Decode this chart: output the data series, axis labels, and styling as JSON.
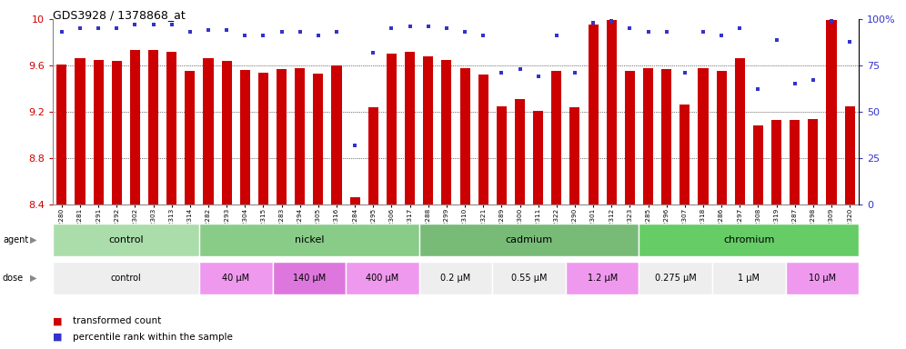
{
  "title": "GDS3928 / 1378868_at",
  "samples": [
    "GSM782280",
    "GSM782281",
    "GSM782291",
    "GSM782292",
    "GSM782302",
    "GSM782303",
    "GSM782313",
    "GSM782314",
    "GSM782282",
    "GSM782293",
    "GSM782304",
    "GSM782315",
    "GSM782283",
    "GSM782294",
    "GSM782305",
    "GSM782316",
    "GSM782284",
    "GSM782295",
    "GSM782306",
    "GSM782317",
    "GSM782288",
    "GSM782299",
    "GSM782310",
    "GSM782321",
    "GSM782289",
    "GSM782300",
    "GSM782311",
    "GSM782322",
    "GSM782290",
    "GSM782301",
    "GSM782312",
    "GSM782323",
    "GSM782285",
    "GSM782296",
    "GSM782307",
    "GSM782318",
    "GSM782286",
    "GSM782297",
    "GSM782308",
    "GSM782319",
    "GSM782287",
    "GSM782298",
    "GSM782309",
    "GSM782320"
  ],
  "bar_values": [
    9.61,
    9.66,
    9.65,
    9.64,
    9.73,
    9.73,
    9.72,
    9.55,
    9.66,
    9.64,
    9.56,
    9.54,
    9.57,
    9.58,
    9.53,
    9.6,
    8.46,
    9.24,
    9.7,
    9.72,
    9.68,
    9.65,
    9.58,
    9.52,
    9.25,
    9.31,
    9.21,
    9.55,
    9.24,
    9.95,
    9.99,
    9.55,
    9.58,
    9.57,
    9.26,
    9.58,
    9.55,
    9.66,
    9.08,
    9.13,
    9.13,
    9.14,
    9.99,
    9.25
  ],
  "percentile_values": [
    93,
    95,
    95,
    95,
    97,
    97,
    97,
    93,
    94,
    94,
    91,
    91,
    93,
    93,
    91,
    93,
    32,
    82,
    95,
    96,
    96,
    95,
    93,
    91,
    71,
    73,
    69,
    91,
    71,
    98,
    99,
    95,
    93,
    93,
    71,
    93,
    91,
    95,
    62,
    89,
    65,
    67,
    99,
    88
  ],
  "ymin": 8.4,
  "ymax": 10.0,
  "yticks": [
    8.4,
    8.8,
    9.2,
    9.6,
    10.0
  ],
  "ytick_labels": [
    "8.4",
    "8.8",
    "9.2",
    "9.6",
    "10"
  ],
  "y2ticks_pct": [
    0,
    25,
    50,
    75,
    100
  ],
  "bar_color": "#cc0000",
  "dot_color": "#3333cc",
  "bg_color": "#ffffff",
  "grid_color": "#000000",
  "agent_groups": [
    {
      "label": "control",
      "start": 0,
      "end": 7,
      "color": "#aaddaa"
    },
    {
      "label": "nickel",
      "start": 8,
      "end": 19,
      "color": "#88cc88"
    },
    {
      "label": "cadmium",
      "start": 20,
      "end": 31,
      "color": "#77bb77"
    },
    {
      "label": "chromium",
      "start": 32,
      "end": 43,
      "color": "#66cc66"
    }
  ],
  "dose_groups": [
    {
      "label": "control",
      "start": 0,
      "end": 7,
      "color": "#eeeeee"
    },
    {
      "label": "40 μM",
      "start": 8,
      "end": 11,
      "color": "#ee99ee"
    },
    {
      "label": "140 μM",
      "start": 12,
      "end": 15,
      "color": "#dd77dd"
    },
    {
      "label": "400 μM",
      "start": 16,
      "end": 19,
      "color": "#ee99ee"
    },
    {
      "label": "0.2 μM",
      "start": 20,
      "end": 23,
      "color": "#eeeeee"
    },
    {
      "label": "0.55 μM",
      "start": 24,
      "end": 27,
      "color": "#eeeeee"
    },
    {
      "label": "1.2 μM",
      "start": 28,
      "end": 31,
      "color": "#ee99ee"
    },
    {
      "label": "0.275 μM",
      "start": 32,
      "end": 35,
      "color": "#eeeeee"
    },
    {
      "label": "1 μM",
      "start": 36,
      "end": 39,
      "color": "#eeeeee"
    },
    {
      "label": "10 μM",
      "start": 40,
      "end": 43,
      "color": "#ee99ee"
    }
  ]
}
